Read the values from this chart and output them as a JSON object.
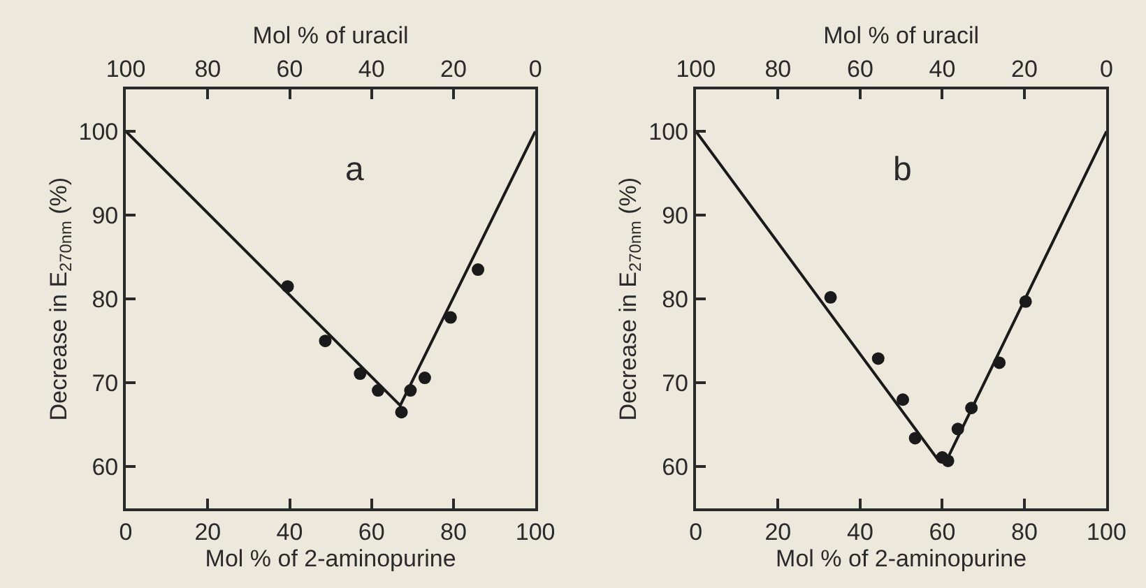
{
  "chart_data": [
    {
      "type": "scatter",
      "xlabel": "Mol % of 2-aminopurine",
      "x2label": "Mol % of uracil",
      "ylabel": "Decrease in E$_{270nm}$ (%)",
      "annotations": [
        "a"
      ],
      "xlim": [
        0,
        100
      ],
      "xticks": [
        0,
        20,
        40,
        60,
        80,
        100
      ],
      "x2lim": [
        100,
        0
      ],
      "x2ticks": [
        100,
        80,
        60,
        40,
        20,
        0
      ],
      "ylim": [
        55,
        105
      ],
      "yticks": [
        60,
        70,
        80,
        90,
        100
      ],
      "marker": "circle",
      "series": [
        {
          "color": "#1a1a1a",
          "x": [
            39.5,
            48.7,
            57.2,
            61.6,
            67.3,
            69.5,
            73.0,
            79.3,
            86.0
          ],
          "values": [
            81.5,
            75.0,
            71.1,
            69.1,
            66.5,
            69.1,
            70.6,
            77.8,
            83.5
          ]
        },
        {
          "type": "line",
          "marker": "none",
          "line_style": "solid",
          "color": "#1a1a1a",
          "x": [
            0,
            67,
            100
          ],
          "values": [
            100,
            67.3,
            100
          ]
        }
      ]
    },
    {
      "type": "scatter",
      "xlabel": "Mol % of 2-aminopurine",
      "x2label": "Mol % of uracil",
      "ylabel": "Decrease in E$_{270nm}$ (%)",
      "annotations": [
        "b"
      ],
      "xlim": [
        0,
        100
      ],
      "xticks": [
        0,
        20,
        40,
        60,
        80,
        100
      ],
      "x2lim": [
        100,
        0
      ],
      "x2ticks": [
        100,
        80,
        60,
        40,
        20,
        0
      ],
      "ylim": [
        55,
        105
      ],
      "yticks": [
        60,
        70,
        80,
        90,
        100
      ],
      "marker": "circle",
      "series": [
        {
          "color": "#1a1a1a",
          "x": [
            32.8,
            44.4,
            50.4,
            53.4,
            60.0,
            61.4,
            63.8,
            67.1,
            73.9,
            80.3
          ],
          "values": [
            80.2,
            72.9,
            68.0,
            63.4,
            61.1,
            60.7,
            64.5,
            67.0,
            72.4,
            79.7
          ]
        },
        {
          "type": "line",
          "marker": "none",
          "line_style": "solid",
          "color": "#1a1a1a",
          "x": [
            0,
            59,
            61.5,
            100
          ],
          "values": [
            100,
            60.8,
            61.2,
            100
          ]
        }
      ]
    }
  ]
}
